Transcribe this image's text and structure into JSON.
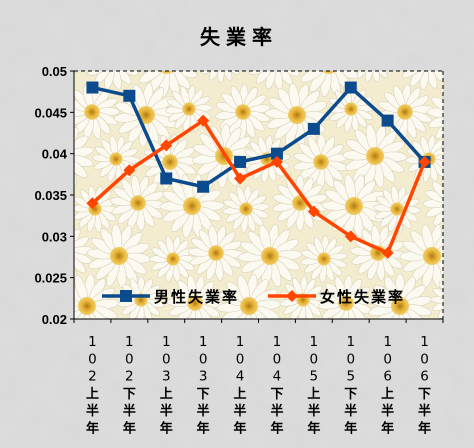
{
  "chart_data": {
    "type": "line",
    "title": "失業率",
    "categories": [
      "102上半年",
      "102下半年",
      "103上半年",
      "103下半年",
      "104上半年",
      "104下半年",
      "105上半年",
      "105下半年",
      "106上半年",
      "106下半年"
    ],
    "category_lines": [
      [
        "1",
        "0",
        "2",
        "上",
        "半",
        "年"
      ],
      [
        "1",
        "0",
        "2",
        "下",
        "半",
        "年"
      ],
      [
        "1",
        "0",
        "3",
        "上",
        "半",
        "年"
      ],
      [
        "1",
        "0",
        "3",
        "下",
        "半",
        "年"
      ],
      [
        "1",
        "0",
        "4",
        "上",
        "半",
        "年"
      ],
      [
        "1",
        "0",
        "4",
        "下",
        "半",
        "年"
      ],
      [
        "1",
        "0",
        "5",
        "上",
        "半",
        "年"
      ],
      [
        "1",
        "0",
        "5",
        "下",
        "半",
        "年"
      ],
      [
        "1",
        "0",
        "6",
        "上",
        "半",
        "年"
      ],
      [
        "1",
        "0",
        "6",
        "下",
        "半",
        "年"
      ]
    ],
    "series": [
      {
        "name": "男性失業率",
        "color": "#0b4a8c",
        "marker": "square",
        "values": [
          0.048,
          0.047,
          0.037,
          0.036,
          0.039,
          0.04,
          0.043,
          0.048,
          0.044,
          0.039
        ]
      },
      {
        "name": "女性失業率",
        "color": "#ff4500",
        "marker": "diamond",
        "values": [
          0.034,
          0.038,
          0.041,
          0.044,
          0.037,
          0.039,
          0.033,
          0.03,
          0.028,
          0.039
        ]
      }
    ],
    "ylim": [
      0.02,
      0.05
    ],
    "yticks": [
      0.02,
      0.025,
      0.03,
      0.035,
      0.04,
      0.045,
      0.05
    ],
    "ytick_labels": [
      "0.02",
      "0.025",
      "0.03",
      "0.035",
      "0.04",
      "0.045",
      "0.05"
    ],
    "grid": false,
    "legend_position": "bottom-inside",
    "background": "daisy-photo",
    "colors": {
      "page_bg": "#dcdcdc",
      "plot_bg": "#f3eccf",
      "petal": "#fbf9f0",
      "flower_center": "#e8b43a"
    }
  }
}
